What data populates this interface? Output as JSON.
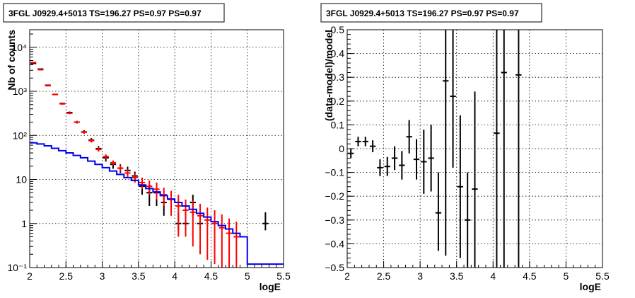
{
  "colors": {
    "data": "#000000",
    "model": "#ff0000",
    "background": "#0000ee",
    "frame": "#000000",
    "grid": "#000000"
  },
  "chart_data": [
    {
      "type": "line",
      "title": "3FGL J0929.4+5013 TS=196.27 PS=0.97 PS=0.97",
      "xlabel": "logE",
      "ylabel": "Nb of counts",
      "xlim": [
        2,
        5.5
      ],
      "ylim": [
        0.1,
        25000
      ],
      "yscale": "log",
      "grid": true,
      "x_ticks": [
        2,
        2.5,
        3,
        3.5,
        4,
        4.5,
        5,
        5.5
      ],
      "x_tick_labels": [
        "2",
        "2.5",
        "3",
        "3.5",
        "4",
        "4.5",
        "5",
        "5.5"
      ],
      "y_ticks": [
        0.1,
        1,
        10,
        100,
        1000,
        10000
      ],
      "y_tick_labels": [
        "10⁻¹",
        "1",
        "10",
        "10²",
        "10³",
        "10⁴"
      ],
      "bin_width": 0.1,
      "series": [
        {
          "role": "data",
          "x": [
            2.05,
            2.15,
            2.25,
            2.35,
            2.45,
            2.55,
            2.65,
            2.75,
            2.85,
            2.95,
            3.05,
            3.15,
            3.25,
            3.35,
            3.45,
            3.55,
            3.65,
            3.75,
            3.85,
            4.05,
            4.15,
            4.25,
            4.35,
            5.25
          ],
          "y": [
            4300,
            3200,
            1350,
            850,
            530,
            330,
            200,
            120,
            78,
            50,
            31,
            22,
            18,
            16,
            12,
            7,
            5,
            5,
            3,
            1,
            1,
            3,
            1,
            1
          ],
          "yerr_low": [
            4200,
            3140,
            1315,
            821,
            507,
            312,
            186,
            109,
            69,
            43,
            25.5,
            17.5,
            14,
            12.5,
            9,
            4.5,
            2.5,
            2.5,
            1.5,
            0.7,
            0.7,
            1.5,
            0.7,
            0.7
          ],
          "yerr_high": [
            4400,
            3260,
            1385,
            879,
            553,
            348,
            214,
            131,
            87,
            57,
            36.5,
            26.5,
            22,
            19.5,
            15,
            9.5,
            7.5,
            7.5,
            4.5,
            1.8,
            1.8,
            4.5,
            1.8,
            1.8
          ]
        },
        {
          "role": "model",
          "x": [
            2.05,
            2.15,
            2.25,
            2.35,
            2.45,
            2.55,
            2.65,
            2.75,
            2.85,
            2.95,
            3.05,
            3.15,
            3.25,
            3.35,
            3.45,
            3.55,
            3.65,
            3.75,
            3.85,
            3.95,
            4.05,
            4.15,
            4.25,
            4.35,
            4.45,
            4.55,
            4.65,
            4.75,
            4.85
          ],
          "y": [
            4500,
            3100,
            1380,
            850,
            520,
            320,
            200,
            118,
            76,
            48,
            33,
            24,
            18,
            14,
            11,
            8.5,
            7,
            6,
            4.5,
            3.5,
            2.5,
            2,
            1.8,
            1.5,
            1.2,
            1.0,
            0.8,
            0.6,
            0.5
          ],
          "yerr_low": [
            4350,
            3000,
            1330,
            815,
            495,
            302,
            188,
            110,
            70,
            43,
            29,
            21,
            15,
            11,
            8.5,
            6,
            4.5,
            3.5,
            2.5,
            1.5,
            0.5,
            0.5,
            0.3,
            0.2,
            0.15,
            0.12,
            0.1,
            0.1,
            0.1
          ],
          "yerr_high": [
            4650,
            3200,
            1430,
            885,
            545,
            338,
            212,
            126,
            82,
            53,
            37,
            27,
            21,
            17,
            13.5,
            11,
            9.5,
            8.5,
            6.5,
            5.5,
            4.5,
            3.5,
            3.3,
            2.8,
            2.3,
            2.0,
            1.6,
            1.3,
            1.1
          ]
        },
        {
          "role": "background",
          "bins_x_low": [
            2.0,
            2.1,
            2.2,
            2.3,
            2.4,
            2.5,
            2.6,
            2.7,
            2.8,
            2.9,
            3.0,
            3.1,
            3.2,
            3.3,
            3.4,
            3.5,
            3.6,
            3.7,
            3.8,
            3.9,
            4.0,
            4.1,
            4.2,
            4.3,
            4.4,
            4.5,
            4.6,
            4.7,
            4.8,
            4.9,
            5.0,
            5.1,
            5.2,
            5.3,
            5.4
          ],
          "y": [
            68,
            64,
            58,
            51,
            45,
            40,
            35,
            31,
            26,
            22,
            18.5,
            15.5,
            13,
            11,
            9.5,
            7.5,
            6.2,
            5.2,
            4.3,
            3.6,
            3.0,
            2.5,
            2.1,
            1.7,
            1.4,
            1.1,
            0.9,
            0.75,
            0.6,
            0.5,
            0.12,
            0.12,
            0.12,
            0.12,
            0.12
          ]
        }
      ]
    },
    {
      "type": "scatter",
      "title": "3FGL J0929.4+5013 TS=196.27 PS=0.97 PS=0.97",
      "xlabel": "logE",
      "ylabel": "(data-model)/model",
      "xlim": [
        2,
        5.5
      ],
      "ylim": [
        -0.5,
        0.5
      ],
      "grid": true,
      "x_ticks": [
        2,
        2.5,
        3,
        3.5,
        4,
        4.5,
        5,
        5.5
      ],
      "x_tick_labels": [
        "2",
        "2.5",
        "3",
        "3.5",
        "4",
        "4.5",
        "5",
        "5.5"
      ],
      "y_ticks": [
        -0.5,
        -0.4,
        -0.3,
        -0.2,
        -0.1,
        0,
        0.1,
        0.2,
        0.3,
        0.4,
        0.5
      ],
      "y_tick_labels": [
        "−0.5",
        "−0.4",
        "−0.3",
        "−0.2",
        "−0.1",
        "0",
        "0.1",
        "0.2",
        "0.3",
        "0.4",
        "0.5"
      ],
      "bin_width": 0.1,
      "series": [
        {
          "role": "residual",
          "x": [
            2.05,
            2.15,
            2.25,
            2.35,
            2.45,
            2.55,
            2.65,
            2.75,
            2.85,
            2.95,
            3.05,
            3.15,
            3.25,
            3.35,
            3.45,
            3.55,
            3.65,
            3.75,
            4.05,
            4.15,
            4.35
          ],
          "y": [
            -0.02,
            0.03,
            0.03,
            0.01,
            -0.08,
            -0.075,
            -0.04,
            -0.07,
            0.05,
            -0.045,
            -0.055,
            -0.04,
            -0.27,
            0.285,
            0.22,
            -0.16,
            -0.3,
            -0.17,
            0.065,
            0.32,
            0.31
          ],
          "yerr_low": [
            -0.04,
            0.01,
            0.01,
            -0.015,
            -0.115,
            -0.115,
            -0.09,
            -0.13,
            -0.02,
            -0.13,
            -0.19,
            -0.18,
            -0.43,
            -0.45,
            -0.08,
            -0.46,
            -0.5,
            -0.5,
            -0.5,
            -0.5,
            -0.5
          ],
          "yerr_high": [
            0.0,
            0.05,
            0.05,
            0.035,
            -0.045,
            -0.035,
            0.01,
            -0.01,
            0.12,
            0.04,
            0.08,
            0.1,
            -0.1,
            0.5,
            0.5,
            0.14,
            -0.1,
            0.24,
            0.5,
            0.5,
            0.5
          ]
        }
      ]
    }
  ]
}
